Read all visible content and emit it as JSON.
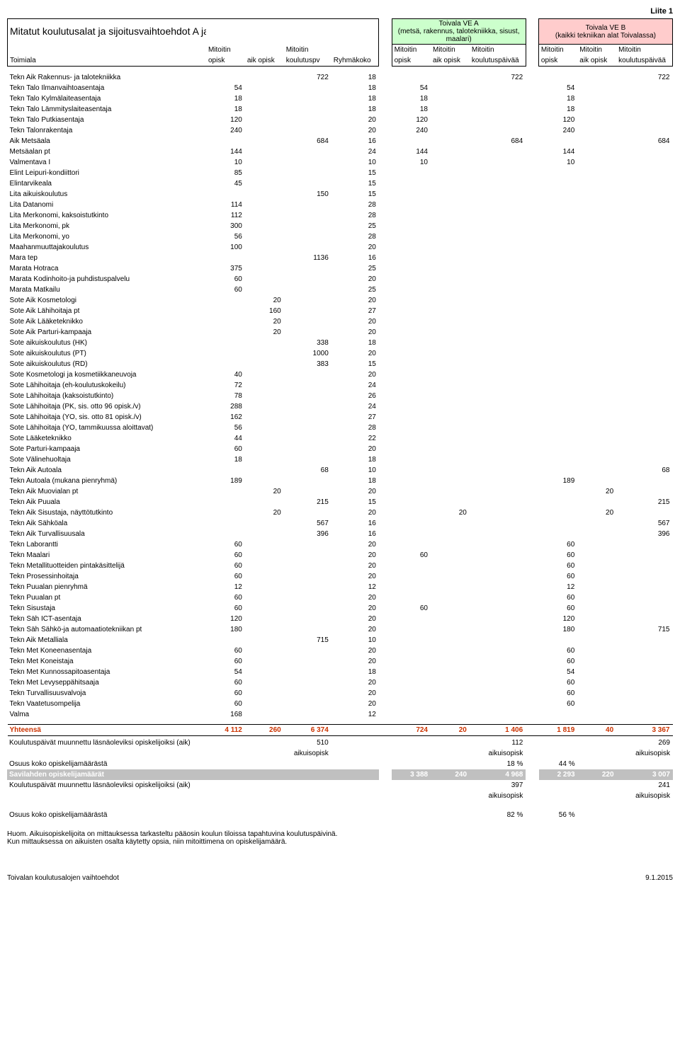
{
  "top_right": "Liite 1",
  "title": "Mitatut koulutusalat ja sijoitusvaihtoehdot A ja B",
  "boxA": "Toivala VE A\n(metsä, rakennus, talotekniikka, sisust, maalari)",
  "boxB": "Toivala VE B\n(kaikki tekniikan alat Toivalassa)",
  "colhead": {
    "toimiala": "Toimiala",
    "m_opisk": "Mitoitin\nopisk",
    "aik_opisk": "aik opisk",
    "m_koulutuspv": "Mitoitin\nkoulutuspv",
    "ryhmakoko": "Ryhmäkoko",
    "koulutuspv": "koulutuspäivää"
  },
  "rows": [
    {
      "n": "Tekn Aik Rakennus- ja talotekniikka",
      "c": [
        "",
        "",
        "722",
        "18",
        "",
        "",
        "",
        "722",
        "",
        "",
        "",
        "722"
      ]
    },
    {
      "n": "Tekn Talo Ilmanvaihtoasentaja",
      "c": [
        "54",
        "",
        "",
        "18",
        "",
        "54",
        "",
        "",
        "",
        "54",
        "",
        ""
      ]
    },
    {
      "n": "Tekn Talo Kylmälaiteasentaja",
      "c": [
        "18",
        "",
        "",
        "18",
        "",
        "18",
        "",
        "",
        "",
        "18",
        "",
        ""
      ]
    },
    {
      "n": "Tekn Talo Lämmityslaiteasentaja",
      "c": [
        "18",
        "",
        "",
        "18",
        "",
        "18",
        "",
        "",
        "",
        "18",
        "",
        ""
      ]
    },
    {
      "n": "Tekn Talo Putkiasentaja",
      "c": [
        "120",
        "",
        "",
        "20",
        "",
        "120",
        "",
        "",
        "",
        "120",
        "",
        ""
      ]
    },
    {
      "n": "Tekn Talonrakentaja",
      "c": [
        "240",
        "",
        "",
        "20",
        "",
        "240",
        "",
        "",
        "",
        "240",
        "",
        ""
      ]
    },
    {
      "n": "Aik Metsäala",
      "c": [
        "",
        "",
        "684",
        "16",
        "",
        "",
        "",
        "684",
        "",
        "",
        "",
        "684"
      ]
    },
    {
      "n": "Metsäalan pt",
      "c": [
        "144",
        "",
        "",
        "24",
        "",
        "144",
        "",
        "",
        "",
        "144",
        "",
        ""
      ]
    },
    {
      "n": "Valmentava I",
      "c": [
        "10",
        "",
        "",
        "10",
        "",
        "10",
        "",
        "",
        "",
        "10",
        "",
        ""
      ]
    },
    {
      "n": "Elint Leipuri-kondiittori",
      "c": [
        "85",
        "",
        "",
        "15",
        "",
        "",
        "",
        "",
        "",
        "",
        "",
        ""
      ]
    },
    {
      "n": "Elintarvikeala",
      "c": [
        "45",
        "",
        "",
        "15",
        "",
        "",
        "",
        "",
        "",
        "",
        "",
        ""
      ]
    },
    {
      "n": "Lita aikuiskoulutus",
      "c": [
        "",
        "",
        "150",
        "15",
        "",
        "",
        "",
        "",
        "",
        "",
        "",
        ""
      ]
    },
    {
      "n": "Lita Datanomi",
      "c": [
        "114",
        "",
        "",
        "28",
        "",
        "",
        "",
        "",
        "",
        "",
        "",
        ""
      ]
    },
    {
      "n": "Lita Merkonomi, kaksoistutkinto",
      "c": [
        "112",
        "",
        "",
        "28",
        "",
        "",
        "",
        "",
        "",
        "",
        "",
        ""
      ]
    },
    {
      "n": "Lita Merkonomi, pk",
      "c": [
        "300",
        "",
        "",
        "25",
        "",
        "",
        "",
        "",
        "",
        "",
        "",
        ""
      ]
    },
    {
      "n": "Lita Merkonomi, yo",
      "c": [
        "56",
        "",
        "",
        "28",
        "",
        "",
        "",
        "",
        "",
        "",
        "",
        ""
      ]
    },
    {
      "n": "Maahanmuuttajakoulutus",
      "c": [
        "100",
        "",
        "",
        "20",
        "",
        "",
        "",
        "",
        "",
        "",
        "",
        ""
      ]
    },
    {
      "n": "Mara tep",
      "c": [
        "",
        "",
        "1136",
        "16",
        "",
        "",
        "",
        "",
        "",
        "",
        "",
        ""
      ]
    },
    {
      "n": "Marata Hotraca",
      "c": [
        "375",
        "",
        "",
        "25",
        "",
        "",
        "",
        "",
        "",
        "",
        "",
        ""
      ]
    },
    {
      "n": "Marata Kodinhoito-ja puhdistuspalvelu",
      "c": [
        "60",
        "",
        "",
        "20",
        "",
        "",
        "",
        "",
        "",
        "",
        "",
        ""
      ]
    },
    {
      "n": "Marata Matkailu",
      "c": [
        "60",
        "",
        "",
        "25",
        "",
        "",
        "",
        "",
        "",
        "",
        "",
        ""
      ]
    },
    {
      "n": "Sote Aik Kosmetologi",
      "c": [
        "",
        "20",
        "",
        "20",
        "",
        "",
        "",
        "",
        "",
        "",
        "",
        ""
      ]
    },
    {
      "n": "Sote Aik Lähihoitaja pt",
      "c": [
        "",
        "160",
        "",
        "27",
        "",
        "",
        "",
        "",
        "",
        "",
        "",
        ""
      ]
    },
    {
      "n": "Sote Aik Lääketeknikko",
      "c": [
        "",
        "20",
        "",
        "20",
        "",
        "",
        "",
        "",
        "",
        "",
        "",
        ""
      ]
    },
    {
      "n": "Sote Aik Parturi-kampaaja",
      "c": [
        "",
        "20",
        "",
        "20",
        "",
        "",
        "",
        "",
        "",
        "",
        "",
        ""
      ]
    },
    {
      "n": "Sote aikuiskoulutus (HK)",
      "c": [
        "",
        "",
        "338",
        "18",
        "",
        "",
        "",
        "",
        "",
        "",
        "",
        ""
      ]
    },
    {
      "n": "Sote aikuiskoulutus (PT)",
      "c": [
        "",
        "",
        "1000",
        "20",
        "",
        "",
        "",
        "",
        "",
        "",
        "",
        ""
      ]
    },
    {
      "n": "Sote aikuiskoulutus (RD)",
      "c": [
        "",
        "",
        "383",
        "15",
        "",
        "",
        "",
        "",
        "",
        "",
        "",
        ""
      ]
    },
    {
      "n": "Sote Kosmetologi ja kosmetiikkaneuvoja",
      "c": [
        "40",
        "",
        "",
        "20",
        "",
        "",
        "",
        "",
        "",
        "",
        "",
        ""
      ]
    },
    {
      "n": "Sote Lähihoitaja (eh-koulutuskokeilu)",
      "c": [
        "72",
        "",
        "",
        "24",
        "",
        "",
        "",
        "",
        "",
        "",
        "",
        ""
      ]
    },
    {
      "n": "Sote Lähihoitaja (kaksoistutkinto)",
      "c": [
        "78",
        "",
        "",
        "26",
        "",
        "",
        "",
        "",
        "",
        "",
        "",
        ""
      ]
    },
    {
      "n": "Sote Lähihoitaja (PK, sis. otto 96 opisk./v)",
      "c": [
        "288",
        "",
        "",
        "24",
        "",
        "",
        "",
        "",
        "",
        "",
        "",
        ""
      ]
    },
    {
      "n": "Sote Lähihoitaja (YO, sis. otto 81 opisk./v)",
      "c": [
        "162",
        "",
        "",
        "27",
        "",
        "",
        "",
        "",
        "",
        "",
        "",
        ""
      ]
    },
    {
      "n": "Sote Lähihoitaja (YO, tammikuussa aloittavat)",
      "c": [
        "56",
        "",
        "",
        "28",
        "",
        "",
        "",
        "",
        "",
        "",
        "",
        ""
      ]
    },
    {
      "n": "Sote Lääketeknikko",
      "c": [
        "44",
        "",
        "",
        "22",
        "",
        "",
        "",
        "",
        "",
        "",
        "",
        ""
      ]
    },
    {
      "n": "Sote Parturi-kampaaja",
      "c": [
        "60",
        "",
        "",
        "20",
        "",
        "",
        "",
        "",
        "",
        "",
        "",
        ""
      ]
    },
    {
      "n": "Sote Välinehuoltaja",
      "c": [
        "18",
        "",
        "",
        "18",
        "",
        "",
        "",
        "",
        "",
        "",
        "",
        ""
      ]
    },
    {
      "n": "Tekn Aik Autoala",
      "c": [
        "",
        "",
        "68",
        "10",
        "",
        "",
        "",
        "",
        "",
        "",
        "",
        "68"
      ]
    },
    {
      "n": "Tekn Autoala (mukana pienryhmä)",
      "c": [
        "189",
        "",
        "",
        "18",
        "",
        "",
        "",
        "",
        "",
        "189",
        "",
        ""
      ]
    },
    {
      "n": "Tekn Aik Muovialan pt",
      "c": [
        "",
        "20",
        "",
        "20",
        "",
        "",
        "",
        "",
        "",
        "",
        "20",
        ""
      ]
    },
    {
      "n": "Tekn Aik Puuala",
      "c": [
        "",
        "",
        "215",
        "15",
        "",
        "",
        "",
        "",
        "",
        "",
        "",
        "215"
      ]
    },
    {
      "n": "Tekn Aik Sisustaja, näyttötutkinto",
      "c": [
        "",
        "20",
        "",
        "20",
        "",
        "",
        "20",
        "",
        "",
        "",
        "20",
        ""
      ]
    },
    {
      "n": "Tekn Aik Sähköala",
      "c": [
        "",
        "",
        "567",
        "16",
        "",
        "",
        "",
        "",
        "",
        "",
        "",
        "567"
      ]
    },
    {
      "n": "Tekn Aik Turvallisuusala",
      "c": [
        "",
        "",
        "396",
        "16",
        "",
        "",
        "",
        "",
        "",
        "",
        "",
        "396"
      ]
    },
    {
      "n": "Tekn Laborantti",
      "c": [
        "60",
        "",
        "",
        "20",
        "",
        "",
        "",
        "",
        "",
        "60",
        "",
        ""
      ]
    },
    {
      "n": "Tekn Maalari",
      "c": [
        "60",
        "",
        "",
        "20",
        "",
        "60",
        "",
        "",
        "",
        "60",
        "",
        ""
      ]
    },
    {
      "n": "Tekn Metallituotteiden pintakäsittelijä",
      "c": [
        "60",
        "",
        "",
        "20",
        "",
        "",
        "",
        "",
        "",
        "60",
        "",
        ""
      ]
    },
    {
      "n": "Tekn Prosessinhoitaja",
      "c": [
        "60",
        "",
        "",
        "20",
        "",
        "",
        "",
        "",
        "",
        "60",
        "",
        ""
      ]
    },
    {
      "n": "Tekn Puualan pienryhmä",
      "c": [
        "12",
        "",
        "",
        "12",
        "",
        "",
        "",
        "",
        "",
        "12",
        "",
        ""
      ]
    },
    {
      "n": "Tekn Puualan pt",
      "c": [
        "60",
        "",
        "",
        "20",
        "",
        "",
        "",
        "",
        "",
        "60",
        "",
        ""
      ]
    },
    {
      "n": "Tekn Sisustaja",
      "c": [
        "60",
        "",
        "",
        "20",
        "",
        "60",
        "",
        "",
        "",
        "60",
        "",
        ""
      ]
    },
    {
      "n": "Tekn Säh ICT-asentaja",
      "c": [
        "120",
        "",
        "",
        "20",
        "",
        "",
        "",
        "",
        "",
        "120",
        "",
        ""
      ]
    },
    {
      "n": "Tekn Säh Sähkö-ja automaatiotekniikan pt",
      "c": [
        "180",
        "",
        "",
        "20",
        "",
        "",
        "",
        "",
        "",
        "180",
        "",
        "715"
      ]
    },
    {
      "n": "Tekn Aik Metalliala",
      "c": [
        "",
        "",
        "715",
        "10",
        "",
        "",
        "",
        "",
        "",
        "",
        "",
        ""
      ]
    },
    {
      "n": "Tekn Met Koneenasentaja",
      "c": [
        "60",
        "",
        "",
        "20",
        "",
        "",
        "",
        "",
        "",
        "60",
        "",
        ""
      ]
    },
    {
      "n": "Tekn Met Koneistaja",
      "c": [
        "60",
        "",
        "",
        "20",
        "",
        "",
        "",
        "",
        "",
        "60",
        "",
        ""
      ]
    },
    {
      "n": "Tekn Met Kunnossapitoasentaja",
      "c": [
        "54",
        "",
        "",
        "18",
        "",
        "",
        "",
        "",
        "",
        "54",
        "",
        ""
      ]
    },
    {
      "n": "Tekn Met Levyseppähitsaaja",
      "c": [
        "60",
        "",
        "",
        "20",
        "",
        "",
        "",
        "",
        "",
        "60",
        "",
        ""
      ]
    },
    {
      "n": "Tekn Turvallisuusvalvoja",
      "c": [
        "60",
        "",
        "",
        "20",
        "",
        "",
        "",
        "",
        "",
        "60",
        "",
        ""
      ]
    },
    {
      "n": "Tekn Vaatetusompelija",
      "c": [
        "60",
        "",
        "",
        "20",
        "",
        "",
        "",
        "",
        "",
        "60",
        "",
        ""
      ]
    },
    {
      "n": "Valma",
      "c": [
        "168",
        "",
        "",
        "12",
        "",
        "",
        "",
        "",
        "",
        "",
        "",
        ""
      ]
    }
  ],
  "totals": {
    "label": "Yhteensä",
    "v": [
      "4 112",
      "260",
      "6 374",
      "",
      "",
      "724",
      "20",
      "1 406",
      "",
      "1 819",
      "40",
      "3 367"
    ]
  },
  "summary": {
    "line1_label": "Koulutuspäivät muunnettu läsnäoleviksi opiskelijoiksi (aik)",
    "line1_v1": "510",
    "line1_v2": "112",
    "line1_v3": "269",
    "aik": "aikuisopisk",
    "osuus_label": "Osuus koko opiskelijamäärästä",
    "osuus1_a": "18 %",
    "osuus1_b": "44 %",
    "savi_label": "Savilahden opiskelijamäärät",
    "savi": [
      "3 388",
      "240",
      "4 968",
      "2 293",
      "220",
      "3 007"
    ],
    "line2_v1": "397",
    "line2_v2": "241",
    "osuus2_a": "82 %",
    "osuus2_b": "56 %"
  },
  "notes": {
    "l1": "Huom. Aikuisopiskelijoita on mittauksessa tarkasteltu pääosin koulun tiloissa tapahtuvina koulutuspäivinä.",
    "l2": "Kun mittauksessa on aikuisten osalta käytetty opsia, niin mitoittimena on opiskelijamäärä."
  },
  "bottom": {
    "left": "Toivalan koulutusalojen vaihtoehdot",
    "right": "9.1.2015"
  }
}
